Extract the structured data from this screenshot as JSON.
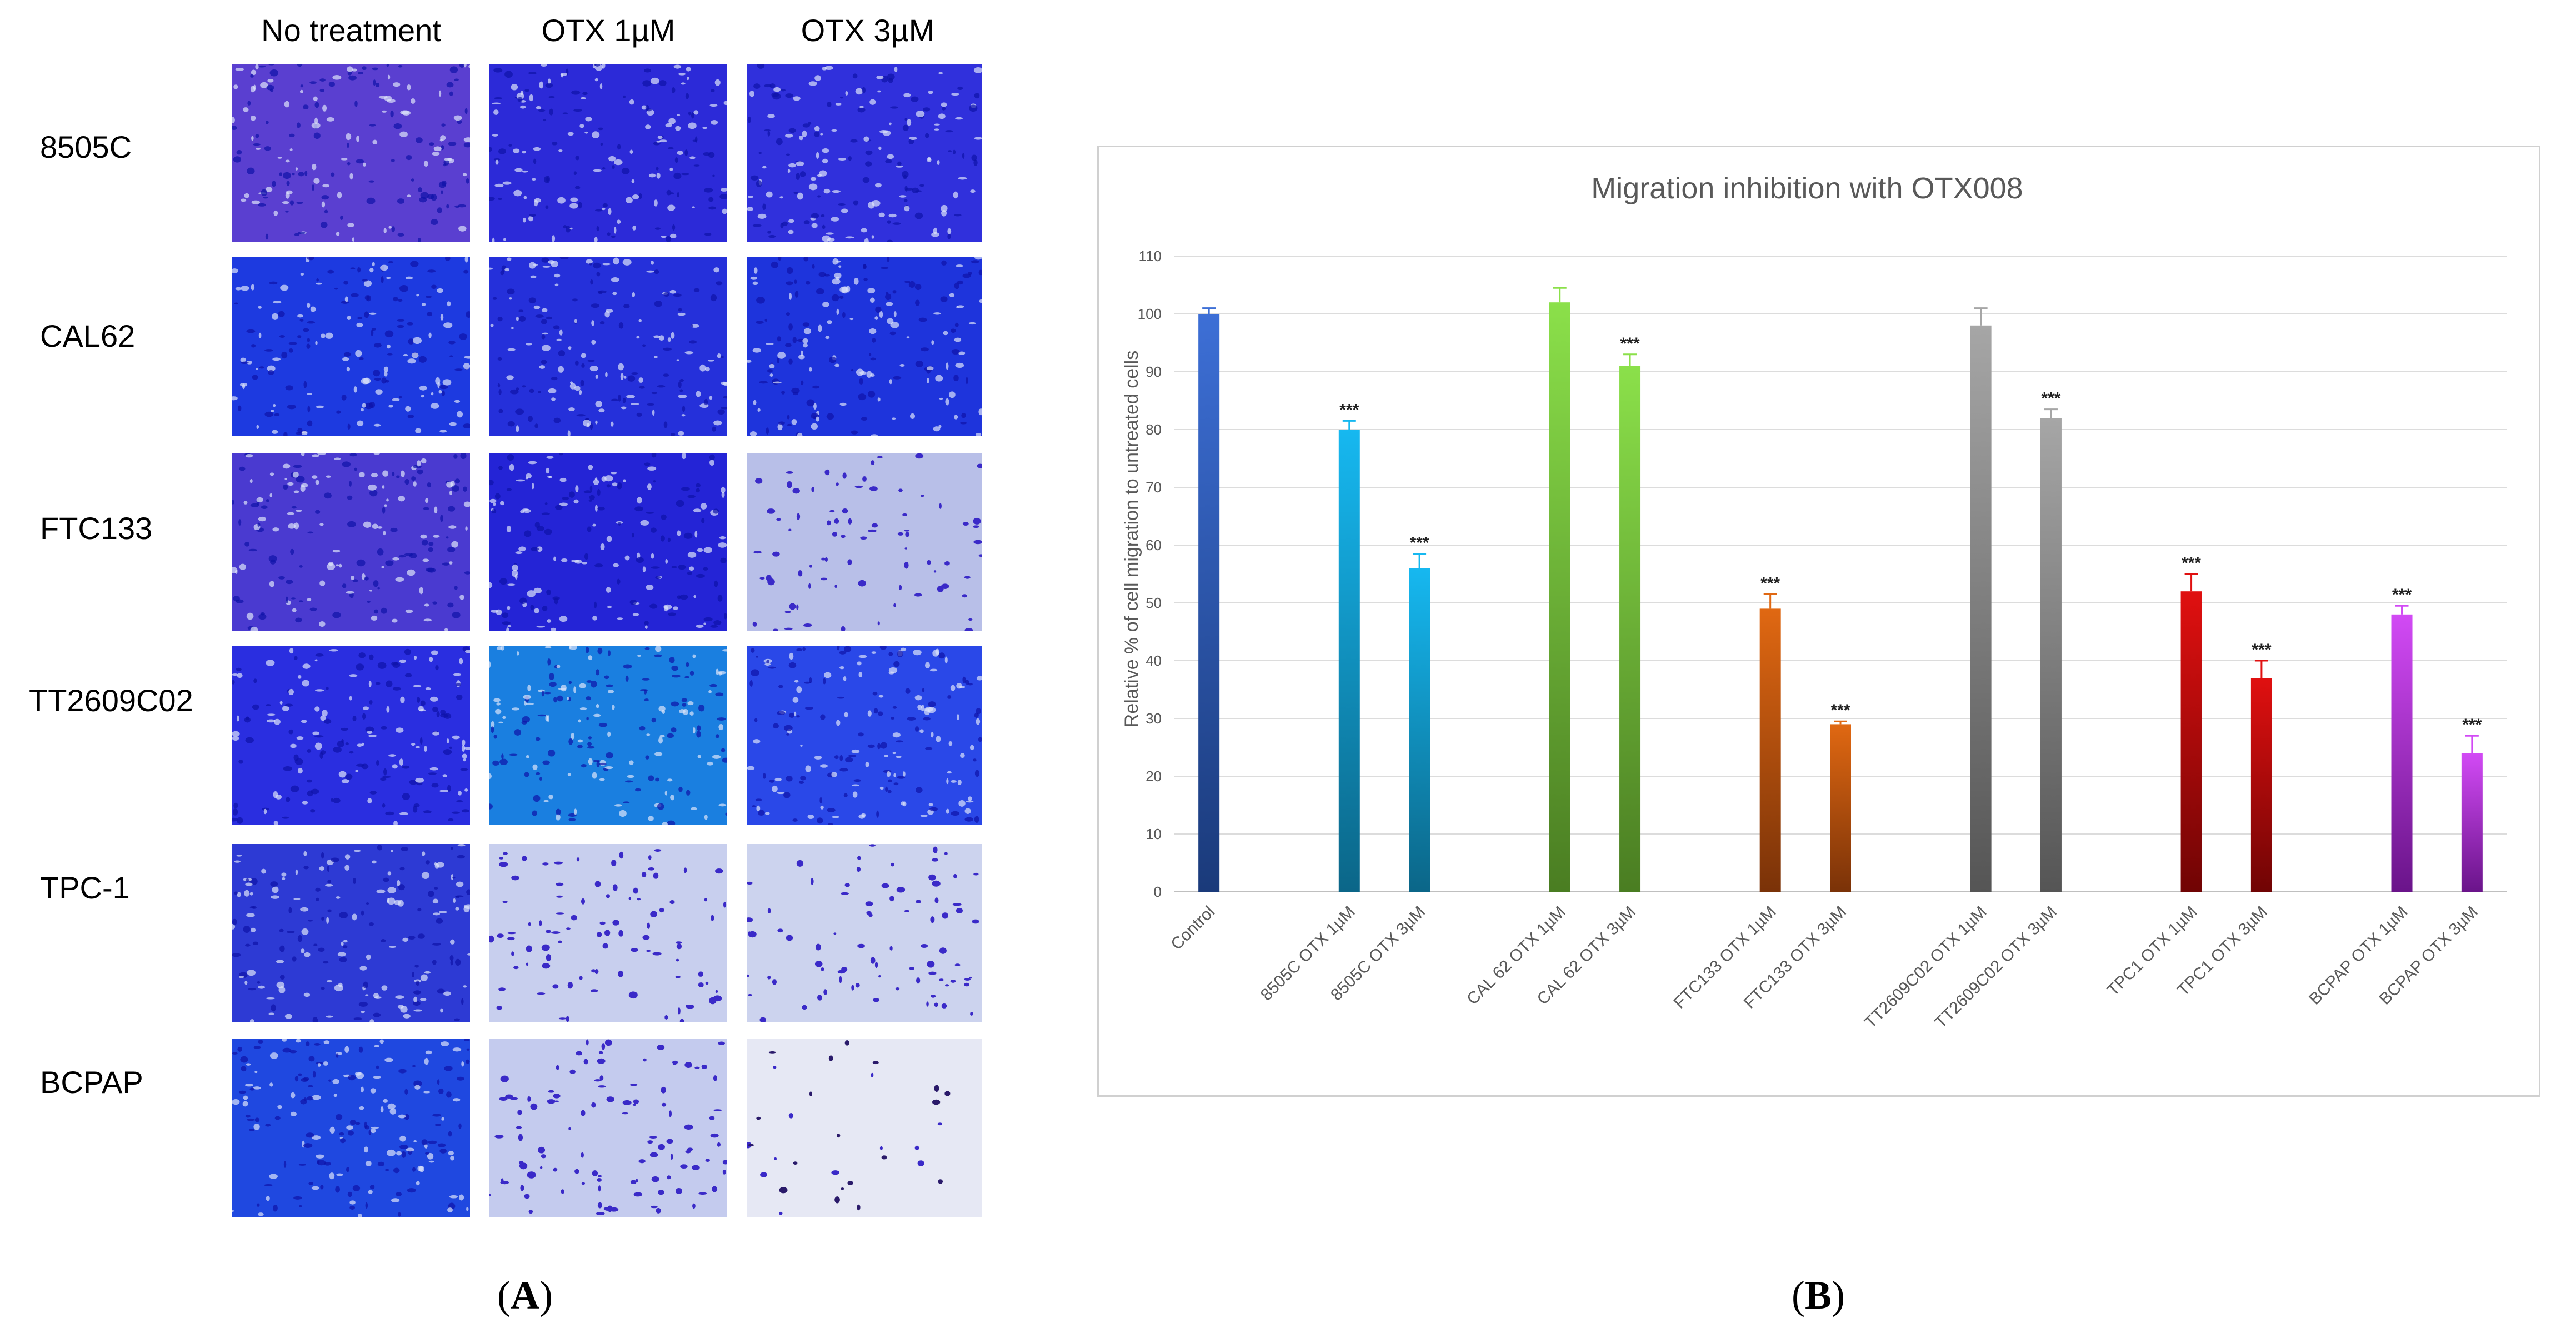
{
  "panel_a": {
    "column_headers": [
      "No treatment",
      "OTX 1µM",
      "OTX 3µM"
    ],
    "row_labels": [
      "8505C",
      "CAL62",
      "FTC133",
      "TT2609C02",
      "TPC-1",
      "BCPAP"
    ],
    "caption": "A"
  },
  "panel_b": {
    "caption": "B"
  },
  "colors": {
    "stain_dark": "#2a1fb8",
    "stain_light": "#dfe3f4"
  },
  "chart_data": {
    "type": "bar",
    "title": "Migration inhibition with OTX008",
    "xlabel": "",
    "ylabel": "Relative % of cell migration to untreated cells",
    "ylim": [
      0,
      110
    ],
    "yticks": [
      0,
      10,
      20,
      30,
      40,
      50,
      60,
      70,
      80,
      90,
      100,
      110
    ],
    "grid": true,
    "bars": [
      {
        "label": "Control",
        "value": 100,
        "error": 1,
        "sig": "",
        "color_top": "#3d6fd6",
        "color_bottom": "#1a3a7a"
      },
      {
        "label": "",
        "value": null,
        "error": null,
        "sig": "",
        "color_top": "",
        "color_bottom": ""
      },
      {
        "label": "8505C OTX 1µM",
        "value": 80,
        "error": 1.5,
        "sig": "***",
        "color_top": "#16b8f0",
        "color_bottom": "#0b6688"
      },
      {
        "label": "8505C OTX 3µM",
        "value": 56,
        "error": 2.5,
        "sig": "***",
        "color_top": "#16b8f0",
        "color_bottom": "#0b6688"
      },
      {
        "label": "",
        "value": null,
        "error": null,
        "sig": "",
        "color_top": "",
        "color_bottom": ""
      },
      {
        "label": "CAL 62 OTX 1µM",
        "value": 102,
        "error": 2.5,
        "sig": "",
        "color_top": "#8be04a",
        "color_bottom": "#4a7d22"
      },
      {
        "label": "CAL 62 OTX 3µM",
        "value": 91,
        "error": 2,
        "sig": "***",
        "color_top": "#8be04a",
        "color_bottom": "#4a7d22"
      },
      {
        "label": "",
        "value": null,
        "error": null,
        "sig": "",
        "color_top": "",
        "color_bottom": ""
      },
      {
        "label": "FTC133 OTX 1µM",
        "value": 49,
        "error": 2.5,
        "sig": "***",
        "color_top": "#e06812",
        "color_bottom": "#7a3208"
      },
      {
        "label": "FTC133 OTX 3µM",
        "value": 29,
        "error": 0.5,
        "sig": "***",
        "color_top": "#e06812",
        "color_bottom": "#7a3208"
      },
      {
        "label": "",
        "value": null,
        "error": null,
        "sig": "",
        "color_top": "",
        "color_bottom": ""
      },
      {
        "label": "TT2609C02 OTX 1µM",
        "value": 98,
        "error": 3,
        "sig": "",
        "color_top": "#a6a6a6",
        "color_bottom": "#555555"
      },
      {
        "label": "TT2609C02 OTX 3µM",
        "value": 82,
        "error": 1.5,
        "sig": "***",
        "color_top": "#a6a6a6",
        "color_bottom": "#555555"
      },
      {
        "label": "",
        "value": null,
        "error": null,
        "sig": "",
        "color_top": "",
        "color_bottom": ""
      },
      {
        "label": "TPC1 OTX 1µM",
        "value": 52,
        "error": 3,
        "sig": "***",
        "color_top": "#e01010",
        "color_bottom": "#700404"
      },
      {
        "label": "TPC1 OTX 3µM",
        "value": 37,
        "error": 3,
        "sig": "***",
        "color_top": "#e01010",
        "color_bottom": "#700404"
      },
      {
        "label": "",
        "value": null,
        "error": null,
        "sig": "",
        "color_top": "",
        "color_bottom": ""
      },
      {
        "label": "BCPAP OTX 1µM",
        "value": 48,
        "error": 1.5,
        "sig": "***",
        "color_top": "#d24af5",
        "color_bottom": "#6a148a"
      },
      {
        "label": "BCPAP OTX 3µM",
        "value": 24,
        "error": 3,
        "sig": "***",
        "color_top": "#d24af5",
        "color_bottom": "#6a148a"
      }
    ]
  }
}
